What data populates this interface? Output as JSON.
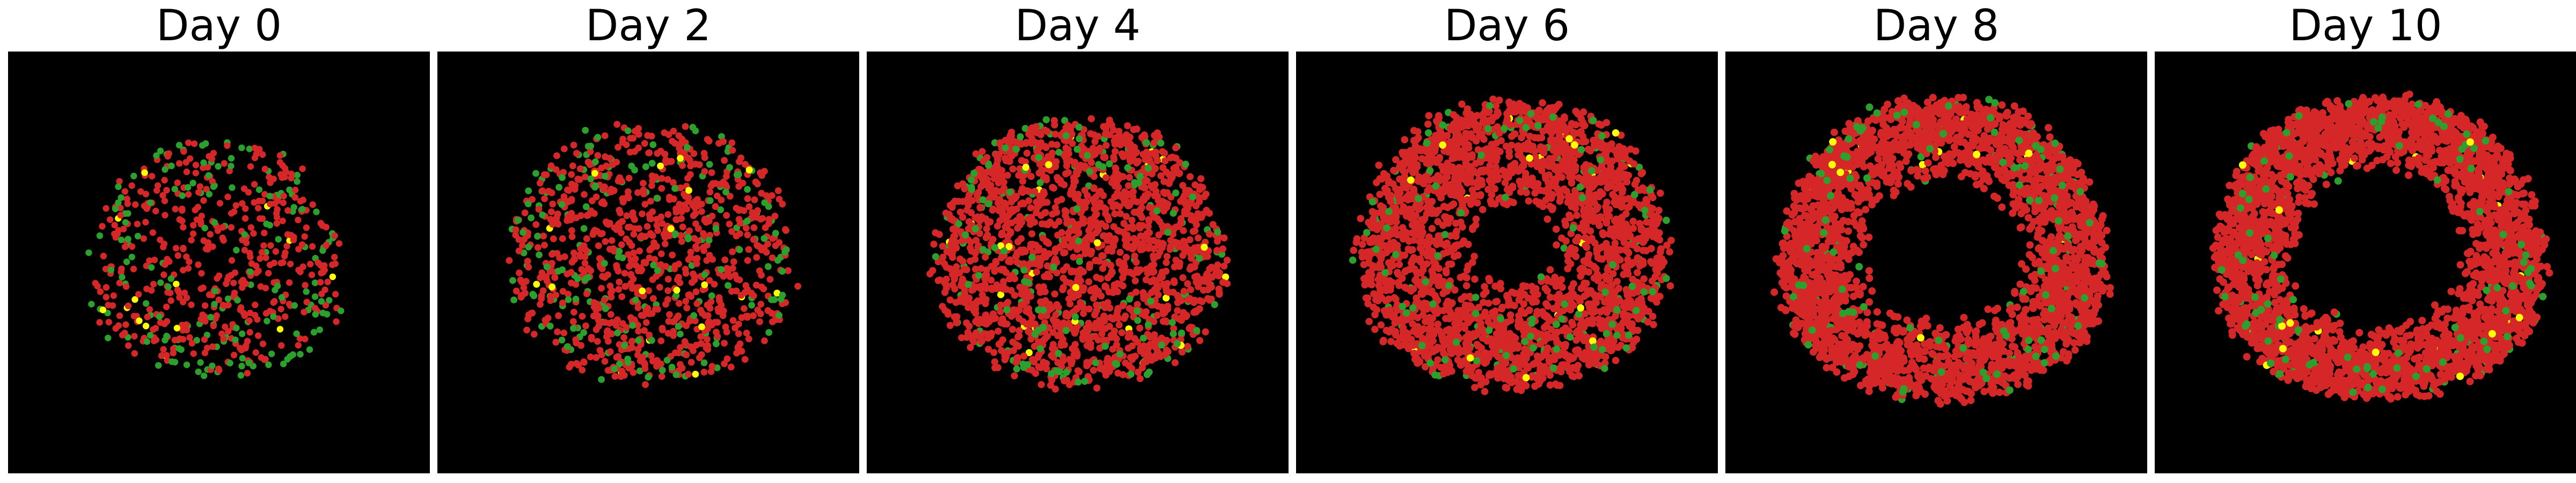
{
  "figure": {
    "background": "#000000",
    "colors": {
      "red": "#d62728",
      "green": "#2ca02c",
      "yellow": "#ffff00"
    },
    "panels": [
      {
        "title": "Day 0"
      },
      {
        "title": "Day 2"
      },
      {
        "title": "Day 4"
      },
      {
        "title": "Day 6"
      },
      {
        "title": "Day 8"
      },
      {
        "title": "Day 10"
      }
    ]
  }
}
